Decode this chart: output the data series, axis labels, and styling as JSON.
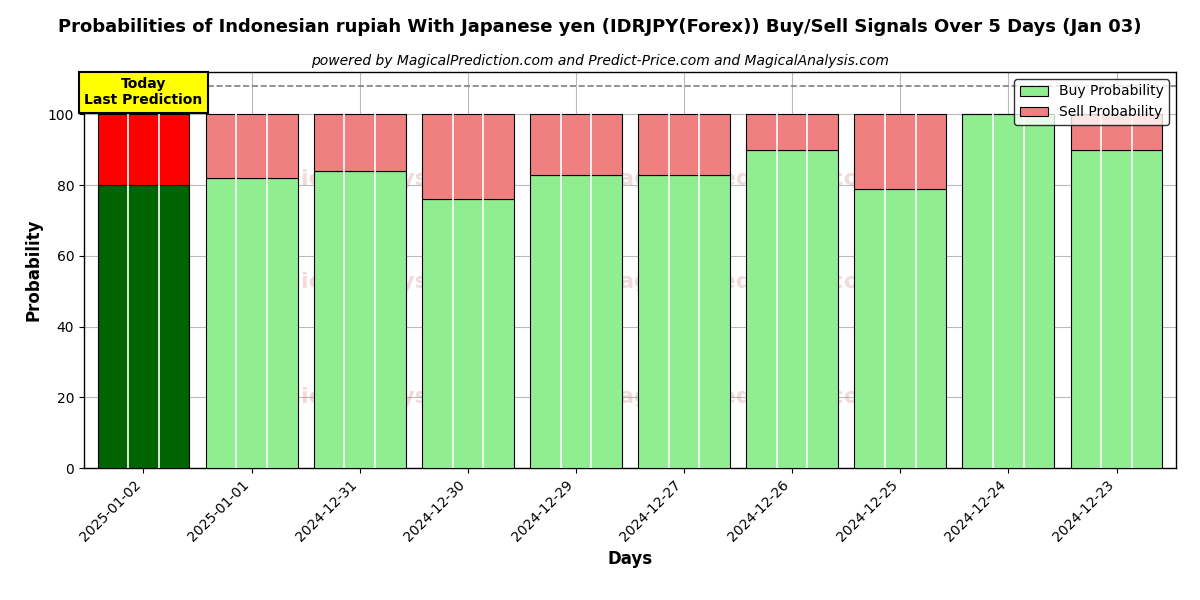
{
  "title": "Probabilities of Indonesian rupiah With Japanese yen (IDRJPY(Forex)) Buy/Sell Signals Over 5 Days (Jan 03)",
  "subtitle": "powered by MagicalPrediction.com and Predict-Price.com and MagicalAnalysis.com",
  "xlabel": "Days",
  "ylabel": "Probability",
  "categories": [
    "2025-01-02",
    "2025-01-01",
    "2024-12-31",
    "2024-12-30",
    "2024-12-29",
    "2024-12-27",
    "2024-12-26",
    "2024-12-25",
    "2024-12-24",
    "2024-12-23"
  ],
  "buy_values": [
    80,
    82,
    84,
    76,
    83,
    83,
    90,
    79,
    100,
    90
  ],
  "sell_values": [
    20,
    18,
    16,
    24,
    17,
    17,
    10,
    21,
    0,
    10
  ],
  "today_buy_color": "#006400",
  "today_sell_color": "#ff0000",
  "buy_color": "#90EE90",
  "sell_color": "#F08080",
  "today_annotation": "Today\nLast Prediction",
  "today_annotation_bg": "#ffff00",
  "legend_buy_label": "Buy Probability",
  "legend_sell_label": "Sell Probability",
  "ylim": [
    0,
    112
  ],
  "yticks": [
    0,
    20,
    40,
    60,
    80,
    100
  ],
  "dashed_line_y": 108,
  "title_fontsize": 13,
  "subtitle_fontsize": 10,
  "axis_label_fontsize": 12,
  "tick_fontsize": 10,
  "background_color": "#ffffff",
  "grid_color": "#bbbbbb",
  "bar_width": 0.85
}
